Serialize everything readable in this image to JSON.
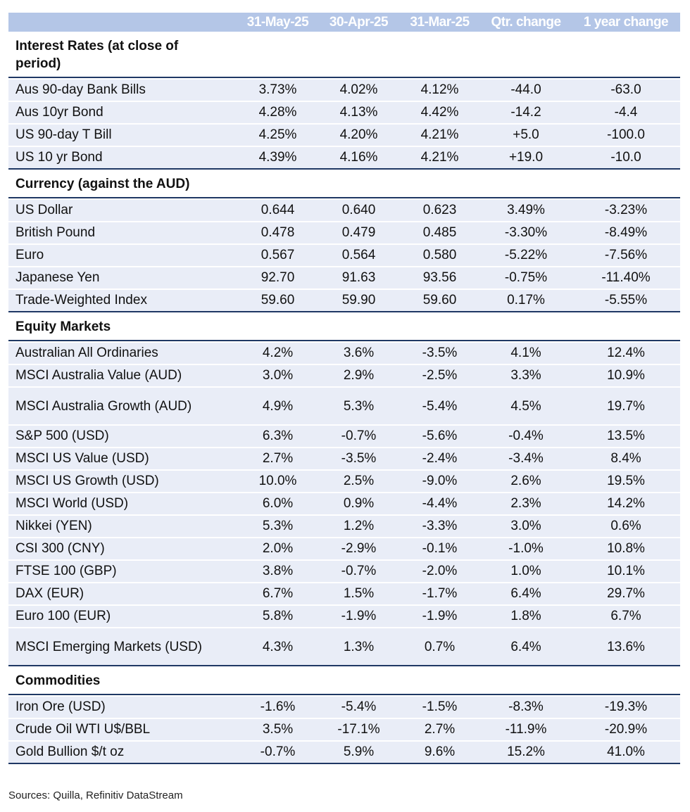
{
  "header": {
    "columns": [
      "",
      "31-May-25",
      "30-Apr-25",
      "31-Mar-25",
      "Qtr. change",
      "1 year change"
    ]
  },
  "sections": [
    {
      "title": "Interest Rates (at close of period)",
      "rows": [
        [
          "Aus 90-day Bank Bills",
          "3.73%",
          "4.02%",
          "4.12%",
          "-44.0",
          "-63.0"
        ],
        [
          "Aus 10yr Bond",
          "4.28%",
          "4.13%",
          "4.42%",
          "-14.2",
          "-4.4"
        ],
        [
          "US 90-day T Bill",
          "4.25%",
          "4.20%",
          "4.21%",
          "+5.0",
          "-100.0"
        ],
        [
          "US 10 yr Bond",
          "4.39%",
          "4.16%",
          "4.21%",
          "+19.0",
          "-10.0"
        ]
      ]
    },
    {
      "title": "Currency (against the AUD)",
      "rows": [
        [
          "US Dollar",
          "0.644",
          "0.640",
          "0.623",
          "3.49%",
          "-3.23%"
        ],
        [
          "British Pound",
          "0.478",
          "0.479",
          "0.485",
          "-3.30%",
          "-8.49%"
        ],
        [
          "Euro",
          "0.567",
          "0.564",
          "0.580",
          "-5.22%",
          "-7.56%"
        ],
        [
          "Japanese Yen",
          "92.70",
          "91.63",
          "93.56",
          "-0.75%",
          "-11.40%"
        ],
        [
          "Trade-Weighted Index",
          "59.60",
          "59.90",
          "59.60",
          "0.17%",
          "-5.55%"
        ]
      ]
    },
    {
      "title": "Equity Markets",
      "rows": [
        [
          "Australian All Ordinaries",
          "4.2%",
          "3.6%",
          "-3.5%",
          "4.1%",
          "12.4%"
        ],
        [
          "MSCI Australia Value (AUD)",
          "3.0%",
          "2.9%",
          "-2.5%",
          "3.3%",
          "10.9%"
        ],
        [
          "MSCI Australia Growth (AUD)",
          "4.9%",
          "5.3%",
          "-5.4%",
          "4.5%",
          "19.7%"
        ],
        [
          "S&P 500 (USD)",
          "6.3%",
          "-0.7%",
          "-5.6%",
          "-0.4%",
          "13.5%"
        ],
        [
          "MSCI US Value (USD)",
          "2.7%",
          "-3.5%",
          "-2.4%",
          "-3.4%",
          "8.4%"
        ],
        [
          "MSCI US Growth (USD)",
          "10.0%",
          "2.5%",
          "-9.0%",
          "2.6%",
          "19.5%"
        ],
        [
          "MSCI World (USD)",
          "6.0%",
          "0.9%",
          "-4.4%",
          "2.3%",
          "14.2%"
        ],
        [
          "Nikkei (YEN)",
          "5.3%",
          "1.2%",
          "-3.3%",
          "3.0%",
          "0.6%"
        ],
        [
          "CSI 300 (CNY)",
          "2.0%",
          "-2.9%",
          "-0.1%",
          "-1.0%",
          "10.8%"
        ],
        [
          "FTSE 100 (GBP)",
          "3.8%",
          "-0.7%",
          "-2.0%",
          "1.0%",
          "10.1%"
        ],
        [
          "DAX (EUR)",
          "6.7%",
          "1.5%",
          "-1.7%",
          "6.4%",
          "29.7%"
        ],
        [
          "Euro 100 (EUR)",
          "5.8%",
          "-1.9%",
          "-1.9%",
          "1.8%",
          "6.7%"
        ],
        [
          "MSCI Emerging Markets (USD)",
          "4.3%",
          "1.3%",
          "0.7%",
          "6.4%",
          "13.6%"
        ]
      ]
    },
    {
      "title": "Commodities",
      "rows": [
        [
          "Iron Ore (USD)",
          "-1.6%",
          "-5.4%",
          "-1.5%",
          "-8.3%",
          "-19.3%"
        ],
        [
          "Crude Oil WTI U$/BBL",
          "3.5%",
          "-17.1%",
          "2.7%",
          "-11.9%",
          "-20.9%"
        ],
        [
          "Gold Bullion $/t oz",
          "-0.7%",
          "5.9%",
          "9.6%",
          "15.2%",
          "41.0%"
        ]
      ]
    }
  ],
  "sources": "Sources: Quilla, Refinitiv DataStream"
}
